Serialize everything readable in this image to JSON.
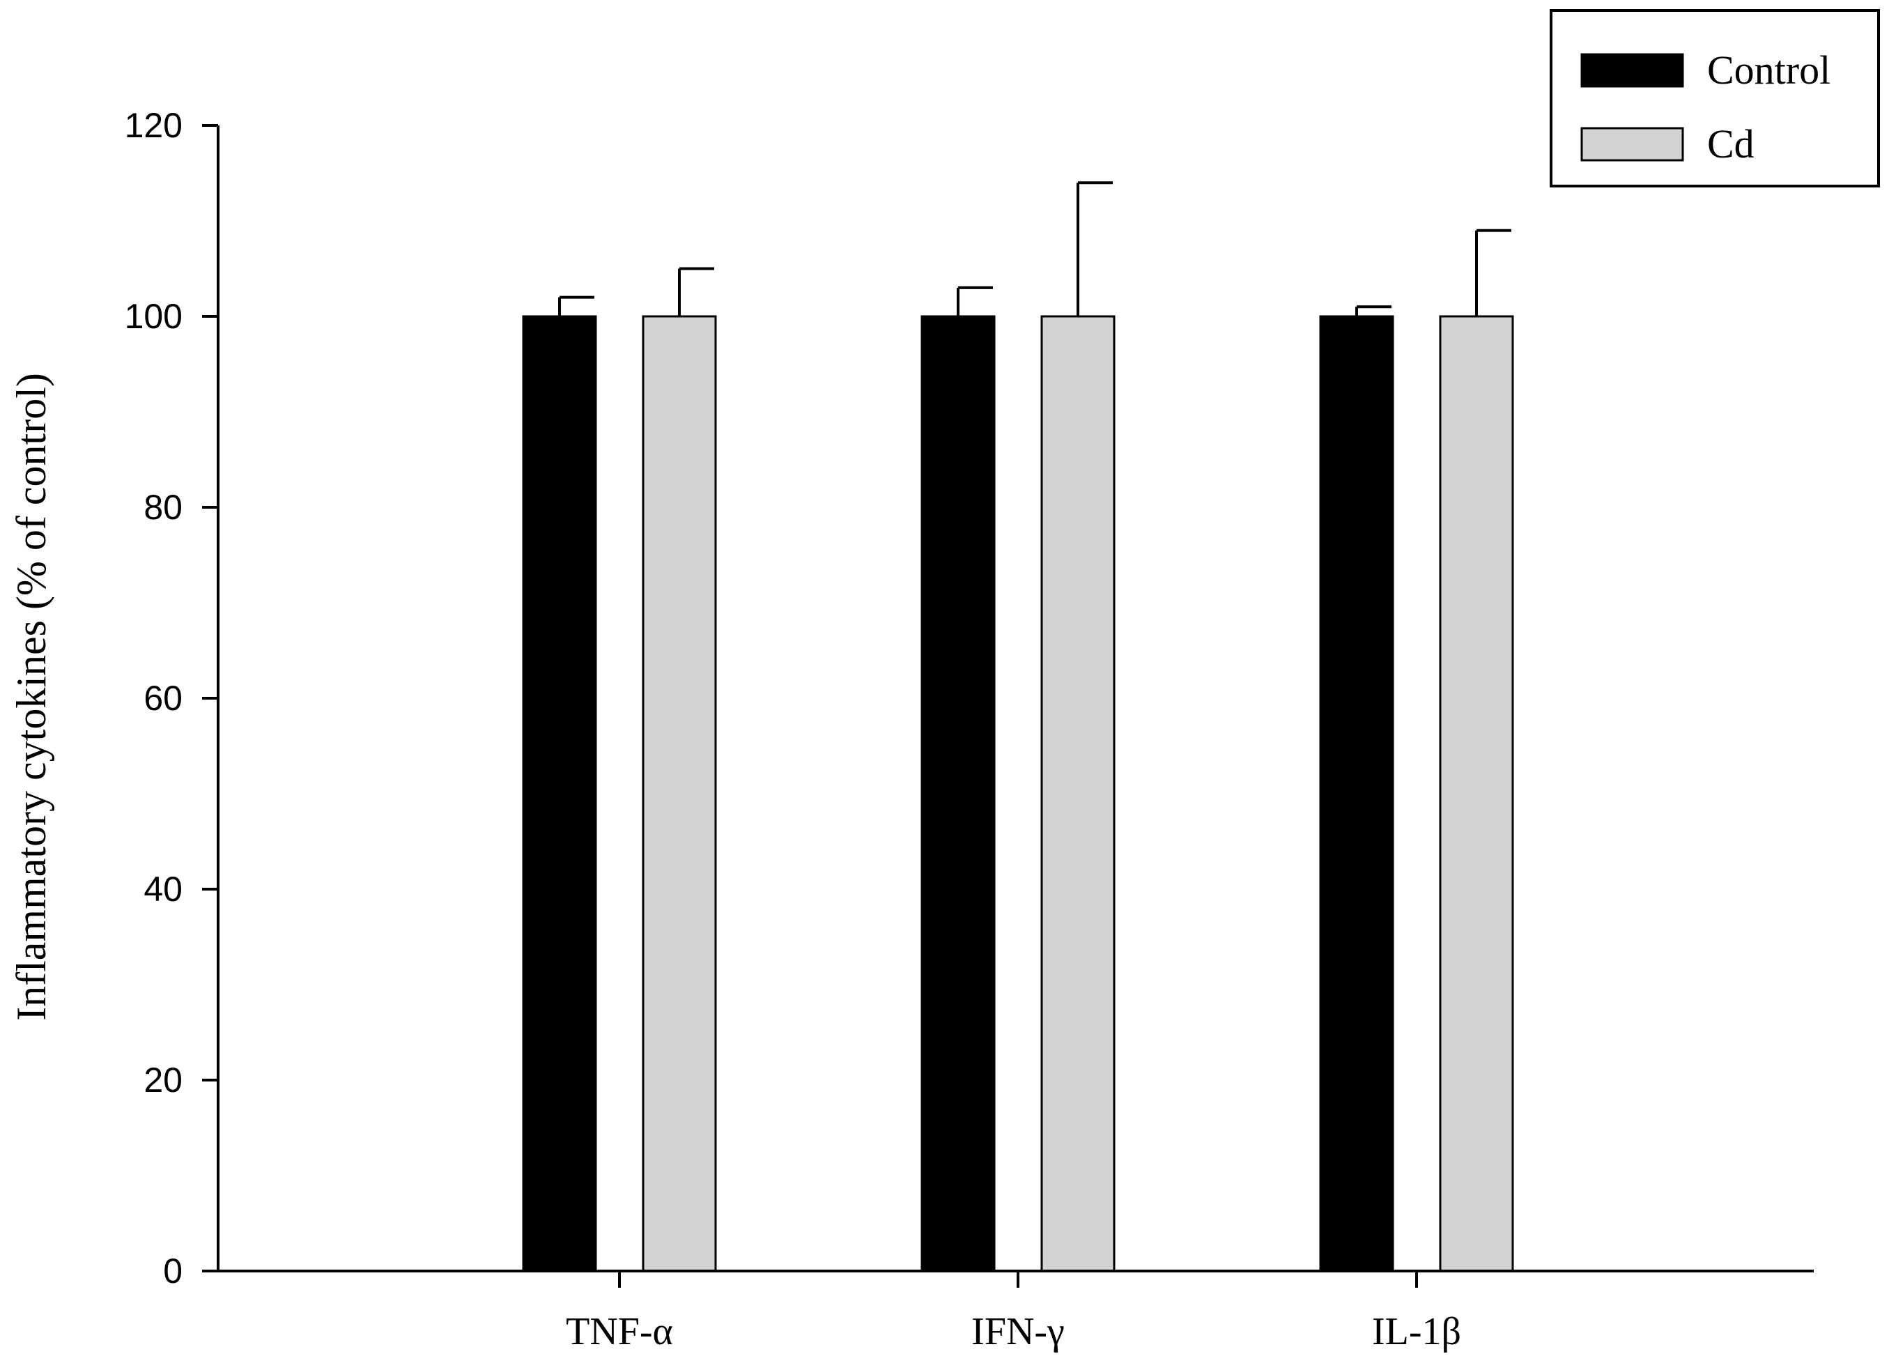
{
  "chart_data": {
    "type": "bar",
    "title": "",
    "xlabel": "",
    "ylabel": "Inflammatory cytokines (% of control)",
    "categories": [
      "TNF-α",
      "IFN-γ",
      "IL-1β"
    ],
    "series": [
      {
        "name": "Control",
        "values": [
          100,
          100,
          100
        ],
        "errors": [
          2,
          3,
          1
        ],
        "color": "#000000"
      },
      {
        "name": "Cd",
        "values": [
          100,
          100,
          100
        ],
        "errors": [
          5,
          14,
          9
        ],
        "color": "#d3d3d3"
      }
    ],
    "ylim": [
      0,
      120
    ],
    "yticks": [
      0,
      20,
      40,
      60,
      80,
      100,
      120
    ],
    "grid": false,
    "legend_position": "top-right"
  }
}
